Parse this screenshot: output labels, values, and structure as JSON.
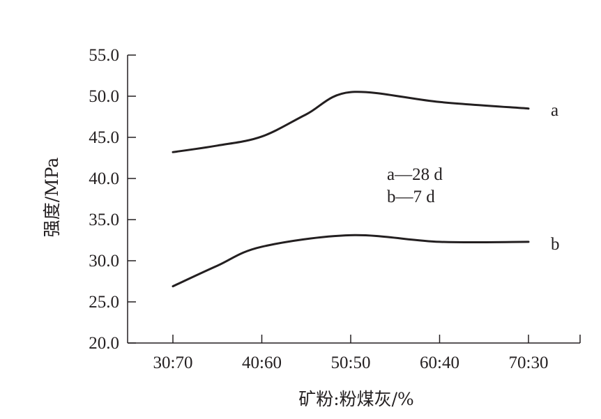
{
  "chart_data": {
    "type": "line",
    "title": "",
    "xlabel": "矿粉:粉煤灰/%",
    "ylabel": "强度/MPa",
    "categories": [
      "30:70",
      "40:60",
      "50:50",
      "60:40",
      "70:30"
    ],
    "ylim": [
      20.0,
      55.0
    ],
    "yticks": [
      "20.0",
      "25.0",
      "30.0",
      "35.0",
      "40.0",
      "45.0",
      "50.0",
      "55.0"
    ],
    "grid": false,
    "legend": {
      "placement": "center",
      "entries": [
        "a—28 d",
        "b—7 d"
      ]
    },
    "series": [
      {
        "name": "a",
        "x": [
          0,
          0.5,
          1,
          1.5,
          2,
          3,
          4
        ],
        "values": [
          43.2,
          44.0,
          45.1,
          47.8,
          50.5,
          49.3,
          48.5
        ]
      },
      {
        "name": "b",
        "x": [
          0,
          0.5,
          1,
          2,
          3,
          4
        ],
        "values": [
          26.9,
          29.4,
          31.7,
          33.1,
          32.3,
          32.3
        ]
      }
    ]
  }
}
